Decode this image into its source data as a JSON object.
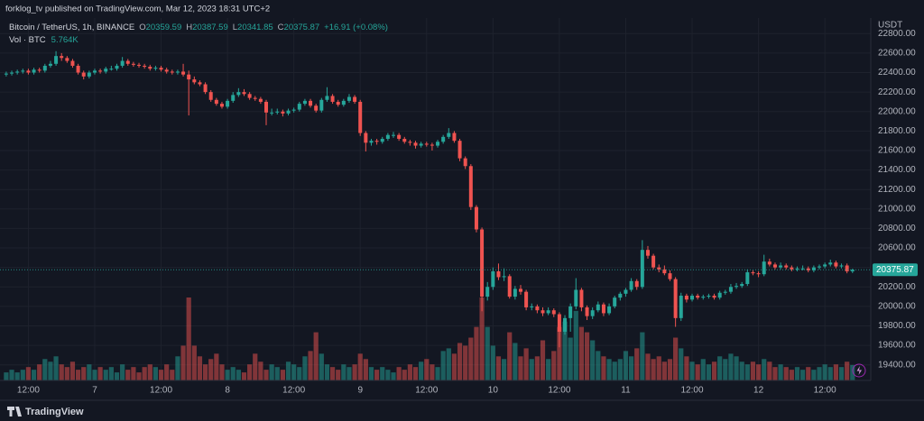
{
  "header": {
    "publisher": "forklog_tv published on TradingView.com, Mar 12, 2023 18:31 UTC+2",
    "brand": "TradingView"
  },
  "chart_data": {
    "type": "candlestick",
    "symbol": "Bitcoin / TetherUS, 1h, BINANCE",
    "legend_values": [
      "O",
      "20359.59",
      "H",
      "20387.59",
      "L",
      "20341.85",
      "C",
      "20375.87",
      "+16.91 (+0.08%)"
    ],
    "volume_title": "Vol · BTC",
    "volume_label": "5.764K",
    "currency": "USDT",
    "up_color": "#26a69a",
    "down_color": "#ef5350",
    "grid": true,
    "categories": [
      null,
      null,
      null,
      null,
      "12:00",
      null,
      null,
      null,
      null,
      null,
      null,
      null,
      null,
      null,
      null,
      null,
      "7",
      null,
      null,
      null,
      null,
      null,
      null,
      null,
      null,
      null,
      null,
      null,
      "12:00",
      null,
      null,
      null,
      null,
      null,
      null,
      null,
      null,
      null,
      null,
      null,
      "8",
      null,
      null,
      null,
      null,
      null,
      null,
      null,
      null,
      null,
      null,
      null,
      "12:00",
      null,
      null,
      null,
      null,
      null,
      null,
      null,
      null,
      null,
      null,
      null,
      "9",
      null,
      null,
      null,
      null,
      null,
      null,
      null,
      null,
      null,
      null,
      null,
      "12:00",
      null,
      null,
      null,
      null,
      null,
      null,
      null,
      null,
      null,
      null,
      null,
      "10",
      null,
      null,
      null,
      null,
      null,
      null,
      null,
      null,
      null,
      null,
      null,
      "12:00",
      null,
      null,
      null,
      null,
      null,
      null,
      null,
      null,
      null,
      null,
      null,
      "11",
      null,
      null,
      null,
      null,
      null,
      null,
      null,
      null,
      null,
      null,
      null,
      "12:00",
      null,
      null,
      null,
      null,
      null,
      null,
      null,
      null,
      null,
      null,
      null,
      "12",
      null,
      null,
      null,
      null,
      null,
      null,
      null,
      null,
      null,
      null,
      null,
      "12:00",
      null,
      null,
      null,
      null,
      null
    ],
    "ohlc": [
      [
        22380,
        22410,
        22360,
        22390
      ],
      [
        22390,
        22420,
        22370,
        22400
      ],
      [
        22400,
        22430,
        22380,
        22410
      ],
      [
        22410,
        22440,
        22390,
        22420
      ],
      [
        22420,
        22440,
        22380,
        22400
      ],
      [
        22400,
        22450,
        22380,
        22430
      ],
      [
        22430,
        22450,
        22400,
        22420
      ],
      [
        22420,
        22490,
        22400,
        22470
      ],
      [
        22470,
        22520,
        22450,
        22490
      ],
      [
        22490,
        22620,
        22470,
        22570
      ],
      [
        22570,
        22600,
        22520,
        22550
      ],
      [
        22550,
        22570,
        22500,
        22520
      ],
      [
        22520,
        22540,
        22450,
        22470
      ],
      [
        22470,
        22490,
        22380,
        22400
      ],
      [
        22400,
        22420,
        22330,
        22360
      ],
      [
        22360,
        22420,
        22340,
        22400
      ],
      [
        22400,
        22440,
        22380,
        22420
      ],
      [
        22420,
        22440,
        22390,
        22410
      ],
      [
        22410,
        22460,
        22390,
        22440
      ],
      [
        22440,
        22470,
        22420,
        22440
      ],
      [
        22440,
        22490,
        22420,
        22470
      ],
      [
        22470,
        22560,
        22450,
        22520
      ],
      [
        22520,
        22540,
        22470,
        22490
      ],
      [
        22490,
        22510,
        22460,
        22480
      ],
      [
        22480,
        22500,
        22450,
        22470
      ],
      [
        22470,
        22490,
        22440,
        22460
      ],
      [
        22460,
        22480,
        22420,
        22440
      ],
      [
        22440,
        22470,
        22420,
        22450
      ],
      [
        22450,
        22470,
        22410,
        22430
      ],
      [
        22430,
        22450,
        22390,
        22410
      ],
      [
        22410,
        22430,
        22380,
        22400
      ],
      [
        22400,
        22430,
        22380,
        22410
      ],
      [
        22410,
        22490,
        22360,
        22380
      ],
      [
        22380,
        22420,
        21960,
        22330
      ],
      [
        22330,
        22360,
        22280,
        22300
      ],
      [
        22300,
        22320,
        22260,
        22280
      ],
      [
        22280,
        22300,
        22180,
        22200
      ],
      [
        22200,
        22220,
        22100,
        22120
      ],
      [
        22120,
        22140,
        22060,
        22080
      ],
      [
        22080,
        22100,
        22030,
        22050
      ],
      [
        22050,
        22130,
        22030,
        22110
      ],
      [
        22110,
        22200,
        22090,
        22170
      ],
      [
        22170,
        22240,
        22150,
        22200
      ],
      [
        22200,
        22230,
        22160,
        22180
      ],
      [
        22180,
        22200,
        22120,
        22140
      ],
      [
        22140,
        22160,
        22110,
        22130
      ],
      [
        22130,
        22150,
        22080,
        22100
      ],
      [
        22100,
        22120,
        21860,
        21990
      ],
      [
        21990,
        22030,
        21960,
        21990
      ],
      [
        21990,
        22030,
        21970,
        22000
      ],
      [
        22000,
        22020,
        21950,
        21980
      ],
      [
        21980,
        22030,
        21960,
        22010
      ],
      [
        22010,
        22040,
        21990,
        22020
      ],
      [
        22020,
        22100,
        22000,
        22080
      ],
      [
        22080,
        22130,
        22060,
        22110
      ],
      [
        22110,
        22130,
        22040,
        22060
      ],
      [
        22060,
        22080,
        21990,
        22010
      ],
      [
        22010,
        22140,
        21990,
        22120
      ],
      [
        22120,
        22250,
        22100,
        22160
      ],
      [
        22160,
        22180,
        22080,
        22100
      ],
      [
        22100,
        22120,
        22050,
        22070
      ],
      [
        22070,
        22130,
        22050,
        22110
      ],
      [
        22110,
        22180,
        22090,
        22150
      ],
      [
        22150,
        22170,
        22080,
        22100
      ],
      [
        22100,
        22120,
        21750,
        21780
      ],
      [
        21780,
        21800,
        21590,
        21680
      ],
      [
        21680,
        21720,
        21650,
        21700
      ],
      [
        21700,
        21720,
        21660,
        21690
      ],
      [
        21690,
        21740,
        21670,
        21720
      ],
      [
        21720,
        21780,
        21700,
        21760
      ],
      [
        21760,
        21790,
        21730,
        21760
      ],
      [
        21760,
        21780,
        21700,
        21720
      ],
      [
        21720,
        21740,
        21670,
        21690
      ],
      [
        21690,
        21710,
        21650,
        21680
      ],
      [
        21680,
        21700,
        21620,
        21650
      ],
      [
        21650,
        21690,
        21630,
        21670
      ],
      [
        21670,
        21690,
        21640,
        21660
      ],
      [
        21660,
        21680,
        21600,
        21650
      ],
      [
        21650,
        21710,
        21630,
        21690
      ],
      [
        21690,
        21760,
        21670,
        21740
      ],
      [
        21740,
        21830,
        21720,
        21780
      ],
      [
        21780,
        21800,
        21680,
        21700
      ],
      [
        21700,
        21720,
        21490,
        21520
      ],
      [
        21520,
        21540,
        21410,
        21440
      ],
      [
        21440,
        21460,
        20990,
        21020
      ],
      [
        21020,
        21040,
        20760,
        20790
      ],
      [
        20790,
        20810,
        19950,
        20100
      ],
      [
        20100,
        20250,
        20060,
        20200
      ],
      [
        20200,
        20400,
        20170,
        20360
      ],
      [
        20360,
        20440,
        20270,
        20300
      ],
      [
        20300,
        20390,
        20260,
        20310
      ],
      [
        20310,
        20330,
        20080,
        20100
      ],
      [
        20100,
        20210,
        20070,
        20180
      ],
      [
        20180,
        20220,
        20120,
        20150
      ],
      [
        20150,
        20170,
        19960,
        19990
      ],
      [
        19990,
        20030,
        19960,
        20000
      ],
      [
        20000,
        20020,
        19930,
        19960
      ],
      [
        19960,
        19990,
        19900,
        19930
      ],
      [
        19930,
        19990,
        19910,
        19960
      ],
      [
        19960,
        19980,
        19890,
        19920
      ],
      [
        19920,
        19940,
        19580,
        19740
      ],
      [
        19740,
        19910,
        19710,
        19880
      ],
      [
        19880,
        20030,
        19740,
        20000
      ],
      [
        20000,
        20290,
        19970,
        20170
      ],
      [
        20170,
        20190,
        19950,
        19990
      ],
      [
        19990,
        20010,
        19860,
        19900
      ],
      [
        19900,
        19990,
        19870,
        19960
      ],
      [
        19960,
        20050,
        19940,
        20020
      ],
      [
        20020,
        20040,
        19900,
        19930
      ],
      [
        19930,
        20030,
        19910,
        20000
      ],
      [
        20000,
        20110,
        19980,
        20090
      ],
      [
        20090,
        20150,
        20060,
        20130
      ],
      [
        20130,
        20190,
        20100,
        20170
      ],
      [
        20170,
        20290,
        20150,
        20260
      ],
      [
        20260,
        20280,
        20170,
        20200
      ],
      [
        20200,
        20680,
        20180,
        20580
      ],
      [
        20580,
        20620,
        20490,
        20520
      ],
      [
        20520,
        20540,
        20380,
        20400
      ],
      [
        20400,
        20430,
        20350,
        20380
      ],
      [
        20380,
        20420,
        20320,
        20340
      ],
      [
        20340,
        20370,
        20260,
        20280
      ],
      [
        20280,
        20300,
        19790,
        19880
      ],
      [
        19880,
        20140,
        19850,
        20110
      ],
      [
        20110,
        20130,
        20040,
        20070
      ],
      [
        20070,
        20130,
        20050,
        20110
      ],
      [
        20110,
        20130,
        20070,
        20090
      ],
      [
        20090,
        20120,
        20070,
        20100
      ],
      [
        20100,
        20130,
        20080,
        20110
      ],
      [
        20110,
        20130,
        20070,
        20090
      ],
      [
        20090,
        20160,
        20070,
        20140
      ],
      [
        20140,
        20170,
        20120,
        20150
      ],
      [
        20150,
        20230,
        20130,
        20200
      ],
      [
        20200,
        20240,
        20180,
        20210
      ],
      [
        20210,
        20250,
        20190,
        20230
      ],
      [
        20230,
        20380,
        20210,
        20350
      ],
      [
        20350,
        20370,
        20320,
        20340
      ],
      [
        20340,
        20360,
        20300,
        20330
      ],
      [
        20330,
        20530,
        20310,
        20460
      ],
      [
        20460,
        20490,
        20410,
        20430
      ],
      [
        20430,
        20450,
        20380,
        20400
      ],
      [
        20400,
        20450,
        20380,
        20420
      ],
      [
        20420,
        20440,
        20380,
        20400
      ],
      [
        20400,
        20420,
        20360,
        20380
      ],
      [
        20380,
        20410,
        20360,
        20390
      ],
      [
        20390,
        20420,
        20370,
        20390
      ],
      [
        20390,
        20410,
        20350,
        20370
      ],
      [
        20370,
        20420,
        20350,
        20400
      ],
      [
        20400,
        20430,
        20380,
        20410
      ],
      [
        20410,
        20450,
        20390,
        20430
      ],
      [
        20430,
        20480,
        20410,
        20450
      ],
      [
        20450,
        20470,
        20390,
        20410
      ],
      [
        20410,
        20440,
        20390,
        20420
      ],
      [
        20420,
        20440,
        20340,
        20360
      ],
      [
        20359.59,
        20387.59,
        20341.85,
        20375.87
      ]
    ],
    "volume": [
      3,
      4,
      3,
      4,
      5,
      4,
      6,
      8,
      7,
      9,
      6,
      5,
      7,
      4,
      5,
      6,
      4,
      5,
      4,
      5,
      3,
      6,
      4,
      5,
      3,
      5,
      6,
      5,
      4,
      6,
      4,
      9,
      13,
      31,
      13,
      9,
      6,
      8,
      10,
      6,
      4,
      5,
      4,
      3,
      6,
      10,
      7,
      4,
      6,
      5,
      4,
      7,
      6,
      5,
      9,
      11,
      18,
      10,
      6,
      5,
      4,
      6,
      5,
      6,
      10,
      8,
      5,
      4,
      5,
      4,
      3,
      5,
      4,
      6,
      5,
      7,
      8,
      6,
      5,
      11,
      12,
      10,
      14,
      13,
      16,
      20,
      31,
      20,
      13,
      9,
      8,
      18,
      14,
      9,
      12,
      8,
      9,
      15,
      8,
      11,
      20,
      22,
      16,
      26,
      20,
      18,
      15,
      11,
      9,
      8,
      7,
      8,
      11,
      9,
      12,
      18,
      10,
      8,
      9,
      7,
      8,
      16,
      12,
      9,
      7,
      6,
      8,
      6,
      7,
      9,
      8,
      10,
      9,
      7,
      6,
      7,
      6,
      8,
      7,
      5,
      6,
      5,
      4,
      5,
      4,
      5,
      4,
      5,
      6,
      5,
      6,
      5,
      7,
      5.764
    ],
    "ylim": [
      19240,
      22960
    ],
    "yticks": [
      {
        "value": 19400,
        "label": "19400.00"
      },
      {
        "value": 19600,
        "label": "19600.00"
      },
      {
        "value": 19800,
        "label": "19800.00"
      },
      {
        "value": 20000,
        "label": "20000.00"
      },
      {
        "value": 20200,
        "label": "20200.00"
      },
      {
        "value": 20400,
        "label": "20400.00"
      },
      {
        "value": 20600,
        "label": "20600.00"
      },
      {
        "value": 20800,
        "label": "20800.00"
      },
      {
        "value": 21000,
        "label": "21000.00"
      },
      {
        "value": 21200,
        "label": "21200.00"
      },
      {
        "value": 21400,
        "label": "21400.00"
      },
      {
        "value": 21600,
        "label": "21600.00"
      },
      {
        "value": 21800,
        "label": "21800.00"
      },
      {
        "value": 22000,
        "label": "22000.00"
      },
      {
        "value": 22200,
        "label": "22200.00"
      },
      {
        "value": 22400,
        "label": "22400.00"
      },
      {
        "value": 22600,
        "label": "22600.00"
      },
      {
        "value": 22800,
        "label": "22800.00"
      }
    ]
  }
}
